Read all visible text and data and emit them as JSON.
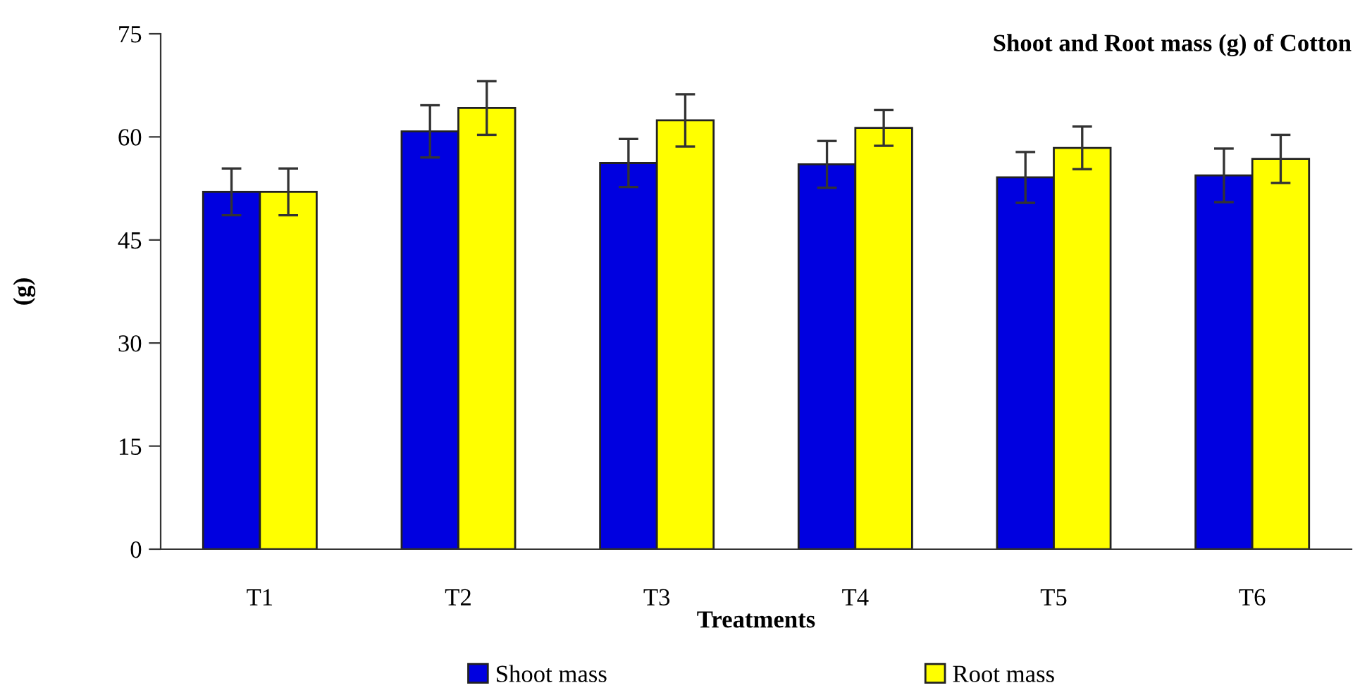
{
  "chart_data": {
    "type": "bar",
    "title": "Shoot and Root mass (g) of Cotton",
    "xlabel": "Treatments",
    "ylabel": "(g)",
    "categories": [
      "T1",
      "T2",
      "T3",
      "T4",
      "T5",
      "T6"
    ],
    "series": [
      {
        "name": "Shoot mass",
        "color": "#0000e0",
        "values": [
          52.0,
          60.8,
          56.2,
          56.0,
          54.1,
          54.4
        ],
        "errors": [
          3.4,
          3.8,
          3.5,
          3.4,
          3.7,
          3.9
        ]
      },
      {
        "name": "Root mass",
        "color": "#ffff00",
        "values": [
          52.0,
          64.2,
          62.4,
          61.3,
          58.4,
          56.8
        ],
        "errors": [
          3.4,
          3.9,
          3.8,
          2.6,
          3.1,
          3.5
        ]
      }
    ],
    "ylim": [
      0,
      75
    ],
    "yticks": [
      0,
      15,
      30,
      45,
      60,
      75
    ],
    "grid": false,
    "legend": "bottom"
  }
}
